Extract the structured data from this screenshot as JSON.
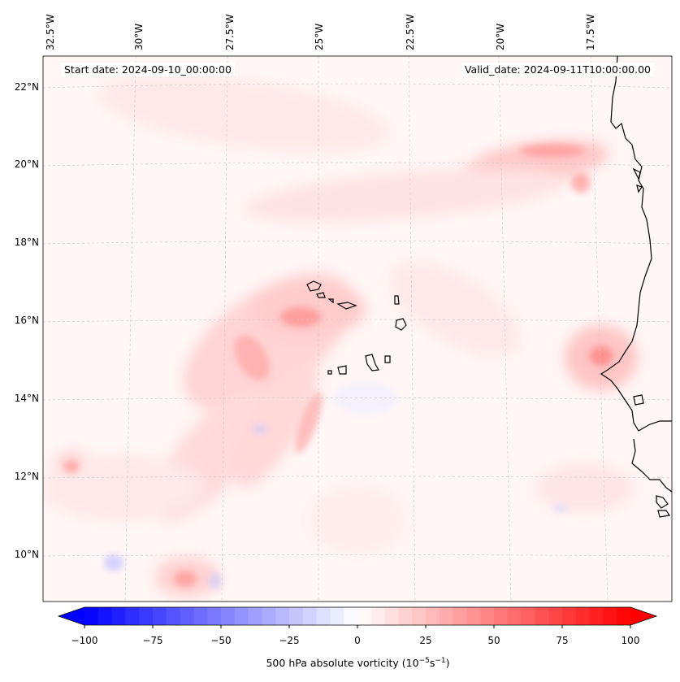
{
  "figure": {
    "start_date_text": "Start date: 2024-09-10_00:00:00",
    "valid_date_text": "Valid_date: 2024-09-11T10:00:00.00"
  },
  "map": {
    "lon_labels": [
      "32.5°W",
      "30°W",
      "27.5°W",
      "25°W",
      "22.5°W",
      "20°W",
      "17.5°W"
    ],
    "lat_labels": [
      "22°N",
      "20°N",
      "18°N",
      "16°N",
      "14°N",
      "12°N",
      "10°N"
    ],
    "colors": {
      "positive": "#ff0000",
      "negative": "#0000ff",
      "coastline": "#000000",
      "grid": "#b0b0b0"
    }
  },
  "colorbar": {
    "label": "500 hPa absolute vorticity (10",
    "label_exp": "−5",
    "label_mid": "s",
    "label_exp2": "−1",
    "label_end": ")",
    "ticks": [
      "−100",
      "−75",
      "−50",
      "−25",
      "0",
      "25",
      "50",
      "75",
      "100"
    ],
    "vmin": -100,
    "vmax": 100,
    "step": 5
  }
}
